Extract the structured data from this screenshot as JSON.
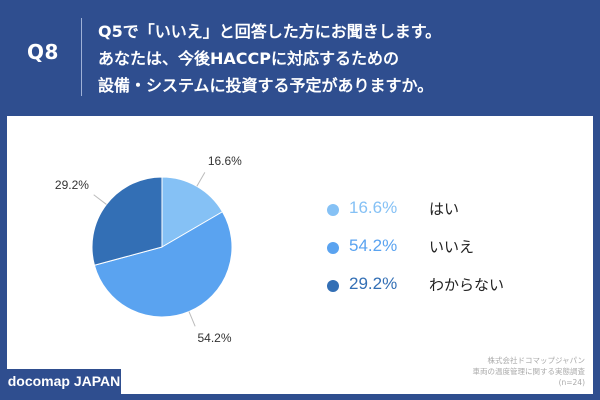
{
  "header": {
    "question_number": "Q8",
    "question_lines": [
      "Q5で「いいえ」と回答した方にお聞きします。",
      "あなたは、今後HACCPに対応するための",
      "設備・システムに投資する予定がありますか。"
    ]
  },
  "chart_data": {
    "type": "pie",
    "slices": [
      {
        "label": "はい",
        "value": 16.6,
        "value_label": "16.6%",
        "color": "#85c1f5"
      },
      {
        "label": "いいえ",
        "value": 54.2,
        "value_label": "54.2%",
        "color": "#5aa3f0"
      },
      {
        "label": "わからない",
        "value": 29.2,
        "value_label": "29.2%",
        "color": "#336fb5"
      }
    ],
    "legend_position": "right"
  },
  "source": {
    "lines": [
      "株式会社ドコマップジャパン",
      "車両の温度管理に関する実態調査",
      "(n=24)"
    ]
  },
  "brand": {
    "label": "docomap JAPAN"
  },
  "colors": {
    "background": "#2f4e8f",
    "panel": "#ffffff"
  }
}
